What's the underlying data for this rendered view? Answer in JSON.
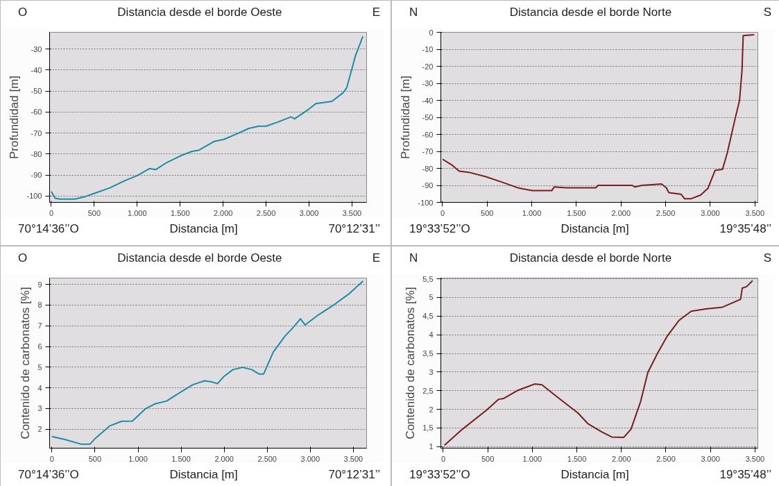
{
  "chart_data": [
    {
      "type": "line",
      "title": "Distancia desde el borde Oeste",
      "xlabel": "Distancia [m]",
      "ylabel": "Profundidad [m]",
      "annotations": [
        "O",
        "E",
        "70°14’36’’O",
        "70°12’31’’"
      ],
      "x": [
        0,
        43,
        100,
        275,
        390,
        506,
        680,
        853,
        997,
        1142,
        1214,
        1344,
        1517,
        1633,
        1720,
        1893,
        2009,
        2153,
        2298,
        2413,
        2500,
        2645,
        2789,
        2832,
        2991,
        3078,
        3266,
        3396,
        3439,
        3540,
        3627
      ],
      "series": [
        {
          "color": "#1f8aa8",
          "values": [
            -97.8,
            -101,
            -101.4,
            -101.4,
            -100.3,
            -98.6,
            -96.1,
            -92.7,
            -90.3,
            -86.9,
            -87.4,
            -84,
            -80.6,
            -78.8,
            -78.1,
            -74,
            -73,
            -70.5,
            -67.8,
            -66.7,
            -66.7,
            -64.6,
            -62.3,
            -63.2,
            -58.8,
            -56,
            -54.9,
            -50.8,
            -48.4,
            -33.2,
            -23.9
          ]
        }
      ],
      "xlim": [
        -20,
        3670
      ],
      "ylim": [
        -103,
        -22
      ],
      "xticks": [
        0,
        500,
        {
          "value": 1000,
          "label": "1.000"
        },
        {
          "value": 1500,
          "label": "1.500"
        },
        {
          "value": 2000,
          "label": "2.000"
        },
        {
          "value": 2500,
          "label": "2.500"
        },
        {
          "value": 3000,
          "label": "3.000"
        },
        {
          "value": 3500,
          "label": "3.500"
        }
      ],
      "yticks": [
        -100,
        -90,
        -80,
        -70,
        -60,
        -50,
        -40,
        -30
      ],
      "grid": "y"
    },
    {
      "type": "line",
      "title": "Distancia desde el borde Norte",
      "xlabel": "Distancia [m]",
      "ylabel": "Profundidad [m]",
      "annotations": [
        "N",
        "S",
        "19°33’52’’O",
        "19°35’48’’"
      ],
      "x": [
        0,
        104,
        186,
        295,
        486,
        678,
        842,
        1005,
        1224,
        1251,
        1388,
        1716,
        1743,
        2126,
        2153,
        2235,
        2454,
        2508,
        2536,
        2672,
        2713,
        2781,
        2891,
        2973,
        3055,
        3137,
        3191,
        3273,
        3328,
        3355,
        3369,
        3492
      ],
      "series": [
        {
          "color": "#7a1c1c",
          "values": [
            -74.6,
            -78,
            -81.6,
            -82.3,
            -84.9,
            -88.3,
            -91.4,
            -93.1,
            -93.1,
            -90.9,
            -91.4,
            -91.4,
            -90,
            -90,
            -90.9,
            -90,
            -89.2,
            -91.4,
            -94.3,
            -95.2,
            -97.9,
            -97.9,
            -95.7,
            -91.8,
            -81.1,
            -80.6,
            -70.8,
            -52,
            -40,
            -22.8,
            -1.9,
            -1.4
          ]
        }
      ],
      "xlim": [
        -19,
        3533
      ],
      "ylim": [
        -100,
        0
      ],
      "xticks": [
        0,
        500,
        {
          "value": 1000,
          "label": "1.000"
        },
        {
          "value": 1500,
          "label": "1.500"
        },
        {
          "value": 2000,
          "label": "2.000"
        },
        {
          "value": 2500,
          "label": "2.500"
        },
        {
          "value": 3000,
          "label": "3.000"
        },
        {
          "value": 3500,
          "label": "3.500"
        }
      ],
      "yticks": [
        -100,
        -90,
        -80,
        -70,
        -60,
        -50,
        -40,
        -30,
        -20,
        -10,
        0
      ],
      "grid": "y"
    },
    {
      "type": "line",
      "title": "Distancia desde el borde Oeste",
      "xlabel": "Distancia [m]",
      "ylabel": "Contenido de carbonatos [%]",
      "annotations": [
        "O",
        "E",
        "70°14’36’’O",
        "70°12’31’’"
      ],
      "x": [
        0,
        151,
        343,
        440,
        508,
        673,
        810,
        934,
        1085,
        1195,
        1332,
        1497,
        1635,
        1772,
        1854,
        1923,
        1992,
        2102,
        2212,
        2321,
        2404,
        2459,
        2569,
        2706,
        2816,
        2885,
        2940,
        3091,
        3283,
        3448,
        3613
      ],
      "series": [
        {
          "color": "#1f8aa8",
          "values": [
            1.64,
            1.5,
            1.27,
            1.27,
            1.57,
            2.16,
            2.38,
            2.39,
            2.98,
            3.22,
            3.36,
            3.8,
            4.15,
            4.34,
            4.29,
            4.2,
            4.53,
            4.88,
            4.99,
            4.88,
            4.67,
            4.67,
            5.72,
            6.5,
            6.99,
            7.34,
            7.04,
            7.52,
            8.04,
            8.54,
            9.17
          ]
        }
      ],
      "xlim": [
        -27,
        3654
      ],
      "ylim": [
        1.08,
        9.31
      ],
      "xticks": [
        0,
        500,
        {
          "value": 1000,
          "label": "1.000"
        },
        {
          "value": 1500,
          "label": "1.500"
        },
        {
          "value": 2000,
          "label": "2.000"
        },
        {
          "value": 2500,
          "label": "2.500"
        },
        {
          "value": 3000,
          "label": "3.000"
        },
        {
          "value": 3500,
          "label": "3.500"
        }
      ],
      "yticks": [
        2,
        3,
        4,
        5,
        6,
        7,
        8,
        9
      ],
      "grid": "y"
    },
    {
      "type": "line",
      "title": "Distancia desde el borde Norte",
      "xlabel": "Distancia [m]",
      "ylabel": "Contenido de carbonatos [%]",
      "annotations": [
        "N",
        "S",
        "19°33’52’’O",
        "19°35’48’’"
      ],
      "x": [
        14,
        216,
        486,
        622,
        676,
        838,
        1027,
        1108,
        1297,
        1514,
        1622,
        1784,
        1892,
        2027,
        2108,
        2216,
        2297,
        2405,
        2514,
        2649,
        2784,
        2946,
        3135,
        3338,
        3357,
        3405,
        3473
      ],
      "series": [
        {
          "color": "#7a1c1c",
          "values": [
            1.04,
            1.47,
            1.98,
            2.27,
            2.29,
            2.51,
            2.68,
            2.66,
            2.3,
            1.9,
            1.62,
            1.39,
            1.26,
            1.25,
            1.47,
            2.21,
            2.99,
            3.5,
            3.96,
            4.39,
            4.63,
            4.69,
            4.74,
            4.95,
            5.25,
            5.29,
            5.45
          ]
        }
      ],
      "xlim": [
        -27,
        3532
      ],
      "ylim": [
        0.96,
        5.52
      ],
      "xticks": [
        0,
        500,
        {
          "value": 1000,
          "label": "1.000"
        },
        {
          "value": 1500,
          "label": "1.500"
        },
        {
          "value": 2000,
          "label": "2.000"
        },
        {
          "value": 2500,
          "label": "2.500"
        },
        {
          "value": 3000,
          "label": "3.000"
        },
        {
          "value": 3500,
          "label": "3.500"
        }
      ],
      "yticks": [
        1,
        {
          "value": 1.5,
          "label": "1,5"
        },
        2,
        {
          "value": 2.5,
          "label": "2,5"
        },
        3,
        {
          "value": 3.5,
          "label": "3,5"
        },
        4,
        {
          "value": 4.5,
          "label": "4,5"
        },
        5,
        {
          "value": 5.5,
          "label": "5,5"
        }
      ],
      "grid": "y"
    }
  ]
}
